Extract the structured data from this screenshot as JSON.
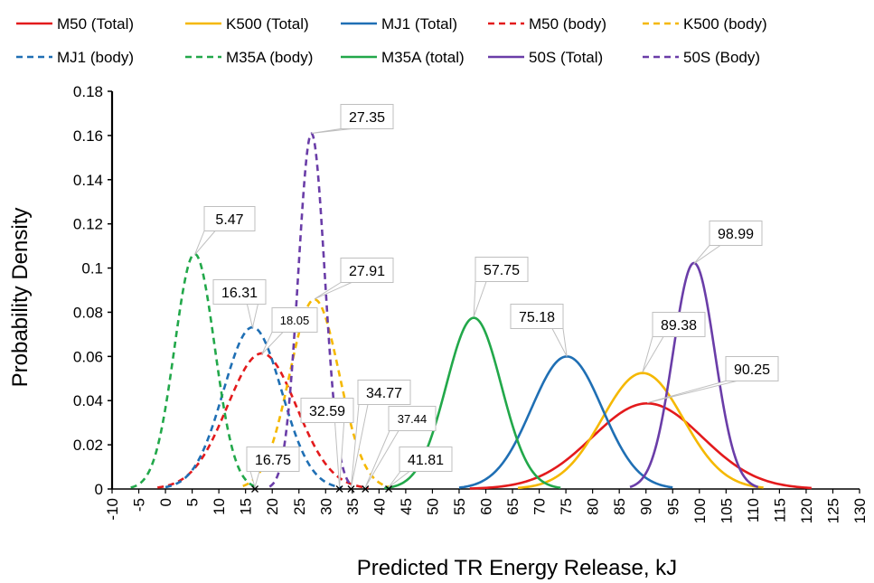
{
  "chart_data": {
    "type": "line",
    "title": "",
    "xlabel": "Predicted TR Energy Release, kJ",
    "ylabel": "Probability Density",
    "xlim": [
      -10,
      130
    ],
    "ylim": [
      0,
      0.18
    ],
    "x_ticks": [
      "-10",
      "-5",
      "0",
      "5",
      "10",
      "15",
      "20",
      "25",
      "30",
      "35",
      "40",
      "45",
      "50",
      "55",
      "60",
      "65",
      "70",
      "75",
      "80",
      "85",
      "90",
      "95",
      "100",
      "105",
      "110",
      "115",
      "120",
      "125",
      "130"
    ],
    "y_ticks": [
      "0",
      "0.02",
      "0.04",
      "0.06",
      "0.08",
      "0.1",
      "0.12",
      "0.14",
      "0.16",
      "0.18"
    ],
    "grid": false,
    "legend_position": "top",
    "series": [
      {
        "name": "M50 (Total)",
        "color": "#E31A1C",
        "dash": "solid",
        "mean": 90.25,
        "sd": 10.3,
        "range": [
          57,
          121
        ]
      },
      {
        "name": "K500 (Total)",
        "color": "#F5B800",
        "dash": "solid",
        "mean": 89.38,
        "sd": 7.6,
        "range": [
          66,
          112
        ]
      },
      {
        "name": "MJ1 (Total)",
        "color": "#1F6FB4",
        "dash": "solid",
        "mean": 75.18,
        "sd": 6.65,
        "range": [
          55,
          95
        ]
      },
      {
        "name": "M50 (body)",
        "color": "#E31A1C",
        "dash": "dashed",
        "mean": 18.05,
        "sd": 6.5,
        "range": [
          -1.5,
          38
        ]
      },
      {
        "name": "K500 (body)",
        "color": "#F5B800",
        "dash": "dashed",
        "mean": 27.91,
        "sd": 4.65,
        "range": [
          14.5,
          42
        ]
      },
      {
        "name": "MJ1 (body)",
        "color": "#1F6FB4",
        "dash": "dashed",
        "mean": 16.31,
        "sd": 5.45,
        "range": [
          0,
          33
        ]
      },
      {
        "name": "M35A (body)",
        "color": "#22A84A",
        "dash": "dashed",
        "mean": 5.47,
        "sd": 3.75,
        "range": [
          -6.5,
          17
        ]
      },
      {
        "name": "M35A (total)",
        "color": "#22A84A",
        "dash": "solid",
        "mean": 57.75,
        "sd": 5.15,
        "range": [
          41,
          74
        ]
      },
      {
        "name": "50S (Total)",
        "color": "#6A3DA8",
        "dash": "solid",
        "mean": 98.99,
        "sd": 3.9,
        "range": [
          87,
          111
        ]
      },
      {
        "name": "50S (Body)",
        "color": "#6A3DA8",
        "dash": "dashed",
        "mean": 27.35,
        "sd": 2.48,
        "range": [
          19.5,
          35
        ]
      }
    ],
    "peak_annotations": [
      {
        "label": "5.47",
        "x": 5.47,
        "y": 0.106
      },
      {
        "label": "16.31",
        "x": 16.31,
        "y": 0.073
      },
      {
        "label": "18.05",
        "x": 18.05,
        "y": 0.061
      },
      {
        "label": "27.35",
        "x": 27.35,
        "y": 0.161
      },
      {
        "label": "27.91",
        "x": 27.91,
        "y": 0.086
      },
      {
        "label": "57.75",
        "x": 57.75,
        "y": 0.078
      },
      {
        "label": "75.18",
        "x": 75.18,
        "y": 0.06
      },
      {
        "label": "89.38",
        "x": 89.38,
        "y": 0.053
      },
      {
        "label": "90.25",
        "x": 90.25,
        "y": 0.039
      },
      {
        "label": "98.99",
        "x": 98.99,
        "y": 0.102
      }
    ],
    "marker_annotations": [
      {
        "label": "16.75",
        "x": 16.75,
        "y": 0.0
      },
      {
        "label": "32.59",
        "x": 32.59,
        "y": 0.0
      },
      {
        "label": "34.77",
        "x": 34.77,
        "y": 0.0
      },
      {
        "label": "37.44",
        "x": 37.44,
        "y": 0.0
      },
      {
        "label": "41.81",
        "x": 41.81,
        "y": 0.0
      }
    ]
  }
}
